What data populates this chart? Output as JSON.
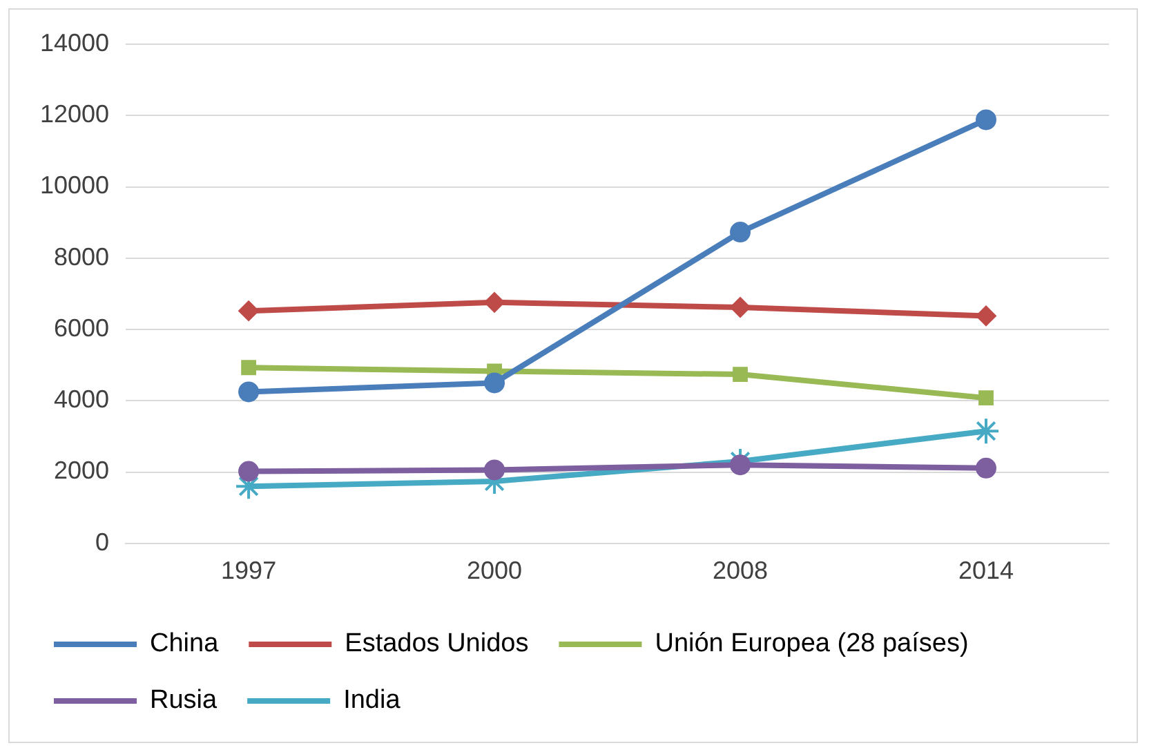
{
  "chart_data": {
    "type": "line",
    "categories": [
      "1997",
      "2000",
      "2008",
      "2014"
    ],
    "series": [
      {
        "name": "China",
        "color": "#4a7ebb",
        "marker": "circle",
        "values": [
          4250,
          4500,
          8730,
          11880
        ]
      },
      {
        "name": "Estados Unidos",
        "color": "#be4b48",
        "marker": "diamond",
        "values": [
          6520,
          6760,
          6620,
          6380
        ]
      },
      {
        "name": "Unión Europea (28 países)",
        "color": "#98b954",
        "marker": "square",
        "values": [
          4930,
          4830,
          4740,
          4080
        ]
      },
      {
        "name": "Rusia",
        "color": "#7d5fa0",
        "marker": "circle",
        "values": [
          2020,
          2060,
          2200,
          2110
        ]
      },
      {
        "name": "India",
        "color": "#46aac5",
        "marker": "cross",
        "values": [
          1600,
          1740,
          2300,
          3150
        ]
      }
    ],
    "ylim": [
      0,
      14000
    ],
    "yticks": [
      0,
      2000,
      4000,
      6000,
      8000,
      10000,
      12000,
      14000
    ],
    "grid": "y",
    "legend": "bottom",
    "line_style": "solid"
  }
}
